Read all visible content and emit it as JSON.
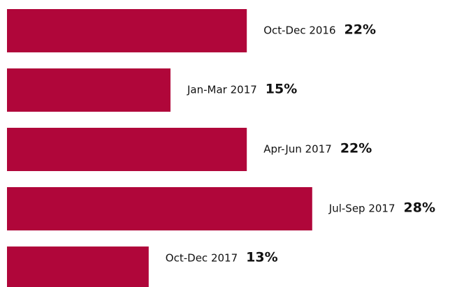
{
  "chart_data": {
    "type": "bar",
    "orientation": "horizontal",
    "categories": [
      "Oct-Dec 2016",
      "Jan-Mar 2017",
      "Apr-Jun 2017",
      "Jul-Sep 2017",
      "Oct-Dec 2017"
    ],
    "values": [
      22,
      15,
      22,
      28,
      13
    ],
    "value_labels": [
      "22%",
      "15%",
      "22%",
      "28%",
      "13%"
    ],
    "color": "#b0063a"
  }
}
